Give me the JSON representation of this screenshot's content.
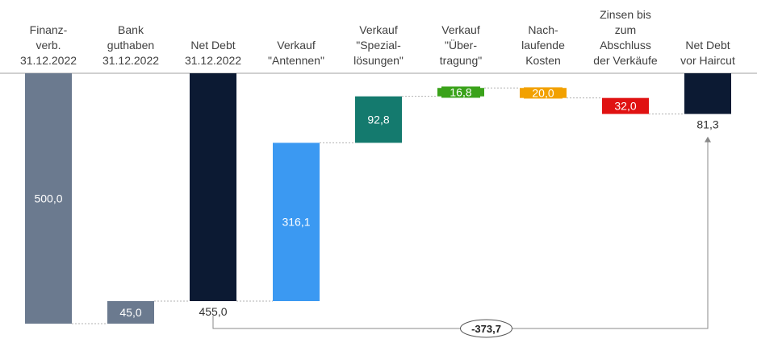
{
  "chart_data": {
    "type": "bar",
    "subtype": "waterfall",
    "orientation": "inverted",
    "categories": [
      [
        "Finanz-",
        "verb.",
        "31.12.2022"
      ],
      [
        "Bank",
        "guthaben",
        "31.12.2022"
      ],
      [
        "Net Debt",
        "31.12.2022"
      ],
      [
        "Verkauf",
        "\"Antennen\""
      ],
      [
        "Verkauf",
        "\"Spezial-",
        "lösungen\""
      ],
      [
        "Verkauf",
        "\"Über-",
        "tragung\""
      ],
      [
        "Nach-",
        "laufende",
        "Kosten"
      ],
      [
        "Zinsen bis",
        "zum",
        "Abschluss",
        "der Verkäufe"
      ],
      [
        "Net Debt",
        "vor Haircut"
      ]
    ],
    "bars": [
      {
        "label": "500,0",
        "from": 0,
        "to": 500.0,
        "color": "#6b7a8f",
        "label_pos": "inside",
        "label_color": "#ffffff"
      },
      {
        "label": "45,0",
        "from": 455.0,
        "to": 500.0,
        "color": "#6b7a8f",
        "label_pos": "inside",
        "label_color": "#ffffff"
      },
      {
        "label": "455,0",
        "from": 0,
        "to": 455.0,
        "color": "#0c1a33",
        "label_pos": "below",
        "label_color": "#333333"
      },
      {
        "label": "316,1",
        "from": 138.9,
        "to": 455.0,
        "color": "#3b99f2",
        "label_pos": "inside",
        "label_color": "#ffffff"
      },
      {
        "label": "92,8",
        "from": 46.1,
        "to": 138.9,
        "color": "#147a6e",
        "label_pos": "inside",
        "label_color": "#ffffff"
      },
      {
        "label": "16,8",
        "from": 29.3,
        "to": 46.1,
        "color": "#3aa21a",
        "label_pos": "inside",
        "label_color": "#ffffff"
      },
      {
        "label": "20,0",
        "from": 29.3,
        "to": 49.3,
        "color": "#f2a100",
        "label_pos": "inside",
        "label_color": "#ffffff"
      },
      {
        "label": "32,0",
        "from": 49.3,
        "to": 81.3,
        "color": "#e01212",
        "label_pos": "inside",
        "label_color": "#ffffff"
      },
      {
        "label": "81,3",
        "from": 0,
        "to": 81.3,
        "color": "#0c1a33",
        "label_pos": "below",
        "label_color": "#333333"
      }
    ],
    "total_change": {
      "label": "-373,7",
      "from_index": 2,
      "to_index": 8
    },
    "ylim": [
      0,
      500
    ],
    "grid": false
  }
}
